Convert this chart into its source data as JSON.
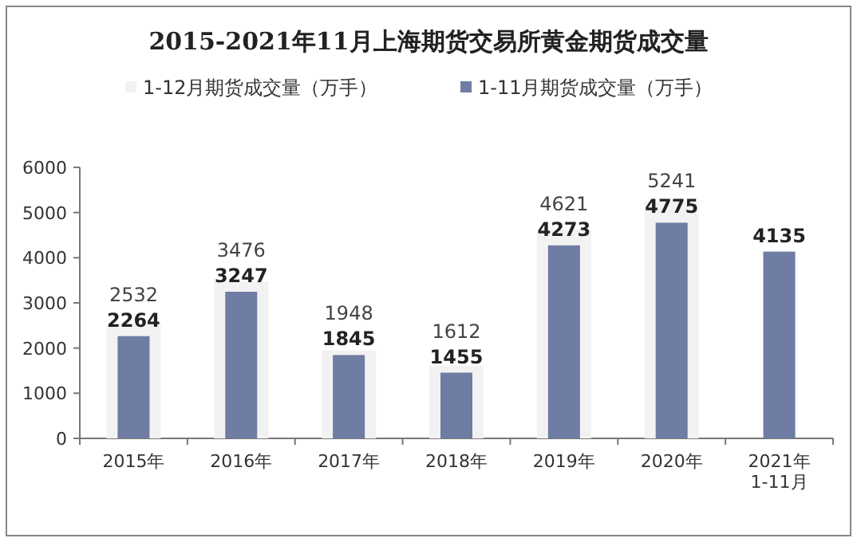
{
  "chart_data": {
    "type": "bar",
    "title": "2015-2021年11月上海期货交易所黄金期货成交量",
    "categories": [
      "2015年",
      "2016年",
      "2017年",
      "2018年",
      "2019年",
      "2020年",
      "2021年\n1-11月"
    ],
    "series": [
      {
        "name": "1-12月期货成交量（万手）",
        "color": "#f2f2f2",
        "values": [
          2532,
          3476,
          1948,
          1612,
          4621,
          5241,
          null
        ]
      },
      {
        "name": "1-11月期货成交量（万手）",
        "color": "#6f7ca3",
        "values": [
          2264,
          3247,
          1845,
          1455,
          4273,
          4775,
          4135
        ]
      }
    ],
    "ylim": [
      0,
      6000
    ],
    "yticks": [
      0,
      1000,
      2000,
      3000,
      4000,
      5000,
      6000
    ],
    "data_labels": true,
    "legend": "top",
    "grid": false
  }
}
